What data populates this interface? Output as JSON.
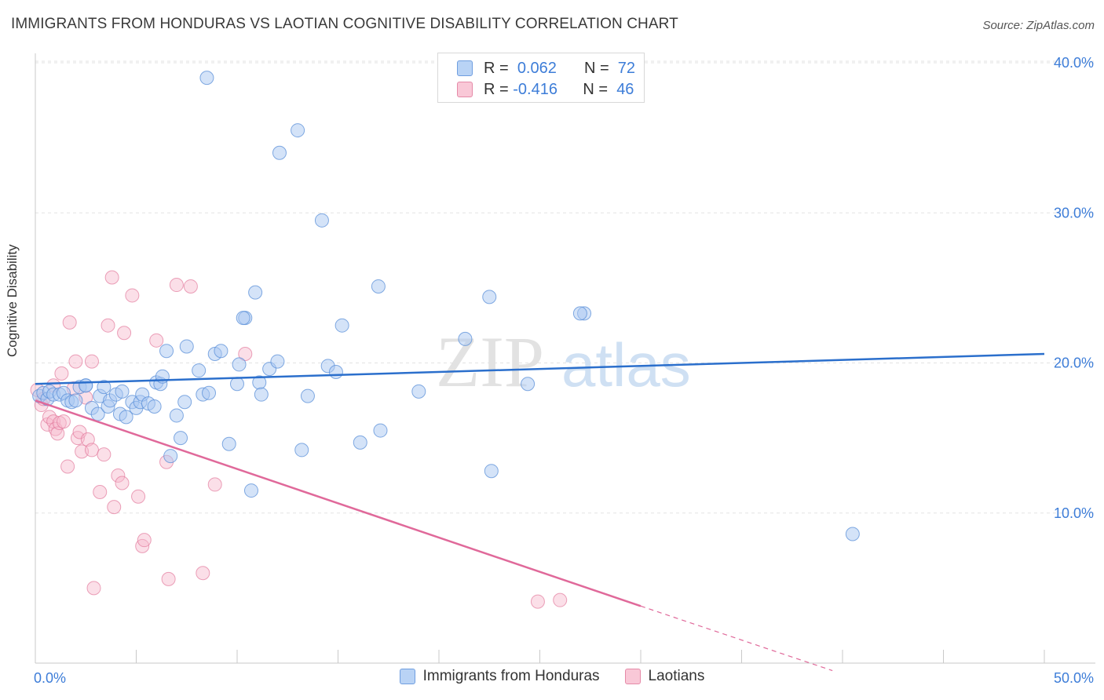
{
  "title": "IMMIGRANTS FROM HONDURAS VS LAOTIAN COGNITIVE DISABILITY CORRELATION CHART",
  "source": "Source: ZipAtlas.com",
  "watermark": {
    "zip": "ZIP",
    "atlas": "atlas"
  },
  "legend_top": {
    "rows": [
      {
        "r_label": "R =",
        "r_value": "0.062",
        "n_label": "N =",
        "n_value": "72"
      },
      {
        "r_label": "R =",
        "r_value": "-0.416",
        "n_label": "N =",
        "n_value": "46"
      }
    ]
  },
  "legend_bottom": {
    "items": [
      "Immigrants from Honduras",
      "Laotians"
    ]
  },
  "colors": {
    "blue_fill": "#a9c8f2",
    "blue_stroke": "#5a8fd8",
    "blue_line": "#2b6fcc",
    "pink_fill": "#f6b9cc",
    "pink_stroke": "#e27a9c",
    "pink_line": "#e0699a",
    "axis_text": "#3d7dd8"
  },
  "chart_data": {
    "type": "scatter",
    "title": "IMMIGRANTS FROM HONDURAS VS LAOTIAN COGNITIVE DISABILITY CORRELATION CHART",
    "xlabel": "",
    "ylabel": "Cognitive Disability",
    "xlim": [
      0,
      50
    ],
    "ylim": [
      0,
      40
    ],
    "x_tick_labels": [
      "0.0%",
      "50.0%"
    ],
    "y_tick_labels": [
      "10.0%",
      "20.0%",
      "30.0%",
      "40.0%"
    ],
    "y_ticks": [
      10,
      20,
      30,
      40
    ],
    "grid": true,
    "legend_placement": "top-center",
    "series": [
      {
        "name": "Immigrants from Honduras",
        "color": "#a9c8f2",
        "R": 0.062,
        "N": 72,
        "trend": {
          "x": [
            0,
            50
          ],
          "y": [
            18.6,
            20.6
          ]
        },
        "points": [
          [
            0.2,
            17.8
          ],
          [
            0.4,
            18.0
          ],
          [
            0.6,
            17.6
          ],
          [
            0.7,
            18.1
          ],
          [
            0.9,
            17.9
          ],
          [
            1.2,
            17.9
          ],
          [
            1.4,
            18.0
          ],
          [
            1.6,
            17.5
          ],
          [
            1.8,
            17.4
          ],
          [
            2.0,
            17.5
          ],
          [
            2.2,
            18.4
          ],
          [
            2.5,
            18.5
          ],
          [
            2.8,
            17.0
          ],
          [
            3.1,
            16.6
          ],
          [
            3.2,
            17.8
          ],
          [
            3.4,
            18.4
          ],
          [
            3.6,
            17.1
          ],
          [
            3.7,
            17.5
          ],
          [
            4.0,
            17.9
          ],
          [
            4.2,
            16.6
          ],
          [
            4.3,
            18.1
          ],
          [
            4.5,
            16.4
          ],
          [
            4.8,
            17.4
          ],
          [
            5.0,
            17.0
          ],
          [
            5.2,
            17.4
          ],
          [
            5.3,
            17.9
          ],
          [
            5.6,
            17.3
          ],
          [
            5.9,
            17.1
          ],
          [
            6.0,
            18.7
          ],
          [
            6.2,
            18.6
          ],
          [
            6.3,
            19.1
          ],
          [
            6.5,
            20.8
          ],
          [
            6.7,
            13.8
          ],
          [
            7.0,
            16.5
          ],
          [
            7.2,
            15.0
          ],
          [
            7.4,
            17.4
          ],
          [
            7.5,
            21.1
          ],
          [
            8.1,
            19.5
          ],
          [
            8.3,
            17.9
          ],
          [
            8.6,
            18.0
          ],
          [
            8.9,
            20.6
          ],
          [
            9.2,
            20.8
          ],
          [
            9.6,
            14.6
          ],
          [
            10.0,
            18.6
          ],
          [
            10.1,
            19.9
          ],
          [
            10.4,
            23.0
          ],
          [
            10.9,
            24.7
          ],
          [
            11.1,
            18.7
          ],
          [
            11.2,
            17.9
          ],
          [
            11.6,
            19.6
          ],
          [
            12.0,
            20.1
          ],
          [
            12.1,
            34.0
          ],
          [
            13.0,
            35.5
          ],
          [
            13.2,
            14.2
          ],
          [
            13.5,
            17.8
          ],
          [
            14.2,
            29.5
          ],
          [
            14.5,
            19.8
          ],
          [
            14.9,
            19.4
          ],
          [
            15.2,
            22.5
          ],
          [
            16.1,
            14.7
          ],
          [
            17.0,
            25.1
          ],
          [
            17.1,
            15.5
          ],
          [
            19.0,
            18.1
          ],
          [
            21.3,
            21.6
          ],
          [
            22.5,
            24.4
          ],
          [
            22.6,
            12.8
          ],
          [
            24.4,
            18.6
          ],
          [
            27.2,
            23.3
          ],
          [
            27.0,
            23.3
          ],
          [
            10.3,
            23.0
          ],
          [
            8.5,
            39.0
          ],
          [
            2.5,
            18.5
          ],
          [
            40.5,
            8.6
          ],
          [
            10.7,
            11.5
          ]
        ]
      },
      {
        "name": "Laotians",
        "color": "#f6b9cc",
        "R": -0.416,
        "N": 46,
        "trend": {
          "x": [
            0,
            30
          ],
          "y": [
            17.5,
            3.8
          ]
        },
        "trend_dashed": {
          "x": [
            30,
            39.5
          ],
          "y": [
            3.8,
            -0.5
          ]
        },
        "points": [
          [
            0.1,
            18.2
          ],
          [
            0.3,
            17.2
          ],
          [
            0.4,
            17.6
          ],
          [
            0.6,
            15.9
          ],
          [
            0.7,
            16.4
          ],
          [
            0.9,
            16.1
          ],
          [
            1.0,
            15.6
          ],
          [
            1.1,
            15.3
          ],
          [
            1.2,
            16.0
          ],
          [
            1.3,
            19.3
          ],
          [
            1.4,
            16.1
          ],
          [
            1.6,
            13.1
          ],
          [
            1.7,
            22.7
          ],
          [
            1.9,
            18.3
          ],
          [
            2.0,
            20.1
          ],
          [
            2.1,
            15.0
          ],
          [
            2.2,
            15.4
          ],
          [
            2.3,
            14.1
          ],
          [
            2.5,
            17.7
          ],
          [
            2.6,
            14.9
          ],
          [
            2.8,
            14.2
          ],
          [
            2.8,
            20.1
          ],
          [
            2.9,
            5.0
          ],
          [
            3.2,
            11.4
          ],
          [
            3.4,
            13.9
          ],
          [
            3.6,
            22.5
          ],
          [
            3.8,
            25.7
          ],
          [
            3.9,
            10.4
          ],
          [
            4.1,
            12.5
          ],
          [
            4.3,
            12.0
          ],
          [
            4.4,
            22.0
          ],
          [
            4.8,
            24.5
          ],
          [
            5.1,
            11.1
          ],
          [
            5.3,
            7.8
          ],
          [
            5.4,
            8.2
          ],
          [
            6.0,
            21.5
          ],
          [
            6.5,
            13.4
          ],
          [
            6.6,
            5.6
          ],
          [
            7.0,
            25.2
          ],
          [
            7.7,
            25.1
          ],
          [
            8.3,
            6.0
          ],
          [
            8.9,
            11.9
          ],
          [
            10.4,
            20.6
          ],
          [
            24.9,
            4.1
          ],
          [
            26.0,
            4.2
          ],
          [
            0.9,
            18.5
          ]
        ]
      }
    ]
  }
}
